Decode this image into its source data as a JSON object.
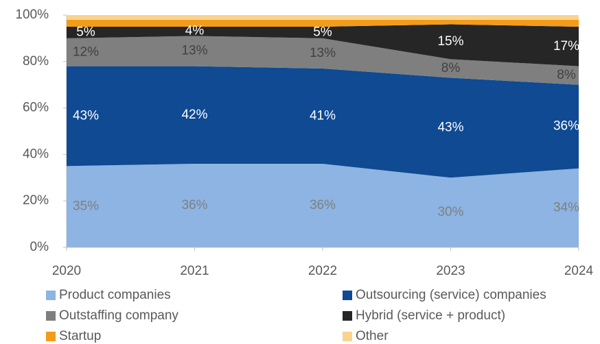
{
  "chart_data": {
    "type": "stacked_area",
    "categories": [
      "2020",
      "2021",
      "2022",
      "2023",
      "2024"
    ],
    "series": [
      {
        "name": "Product companies",
        "color": "#8db4e2",
        "label_color": "#7f7f7f",
        "values": [
          35,
          36,
          36,
          30,
          34
        ],
        "value_labels": [
          "35%",
          "36%",
          "36%",
          "30%",
          "34%"
        ]
      },
      {
        "name": "Outsourcing (service) companies",
        "color": "#0f4a93",
        "label_color": "#ffffff",
        "values": [
          43,
          42,
          41,
          43,
          36
        ],
        "value_labels": [
          "43%",
          "42%",
          "41%",
          "43%",
          "36%"
        ]
      },
      {
        "name": "Outstaffing company",
        "color": "#7f7f7f",
        "label_color": "#404040",
        "values": [
          12,
          13,
          13,
          8,
          8
        ],
        "value_labels": [
          "12%",
          "13%",
          "13%",
          "8%",
          "8%"
        ]
      },
      {
        "name": "Hybrid (service + product)",
        "color": "#262626",
        "label_color": "#ffffff",
        "values": [
          5,
          4,
          5,
          15,
          17
        ],
        "value_labels": [
          "5%",
          "4%",
          "5%",
          "15%",
          "17%"
        ]
      },
      {
        "name": "Startup",
        "color": "#f39c1b",
        "values": [
          3,
          3,
          3,
          2,
          3
        ]
      },
      {
        "name": "Other",
        "color": "#f9d48e",
        "values": [
          2,
          2,
          2,
          2,
          2
        ]
      }
    ],
    "ylim": [
      0,
      100
    ],
    "yticks": [
      {
        "value": 0,
        "label": "0%"
      },
      {
        "value": 20,
        "label": "20%"
      },
      {
        "value": 40,
        "label": "40%"
      },
      {
        "value": 60,
        "label": "60%"
      },
      {
        "value": 80,
        "label": "80%"
      },
      {
        "value": 100,
        "label": "100%"
      }
    ],
    "legend": "bottom"
  }
}
